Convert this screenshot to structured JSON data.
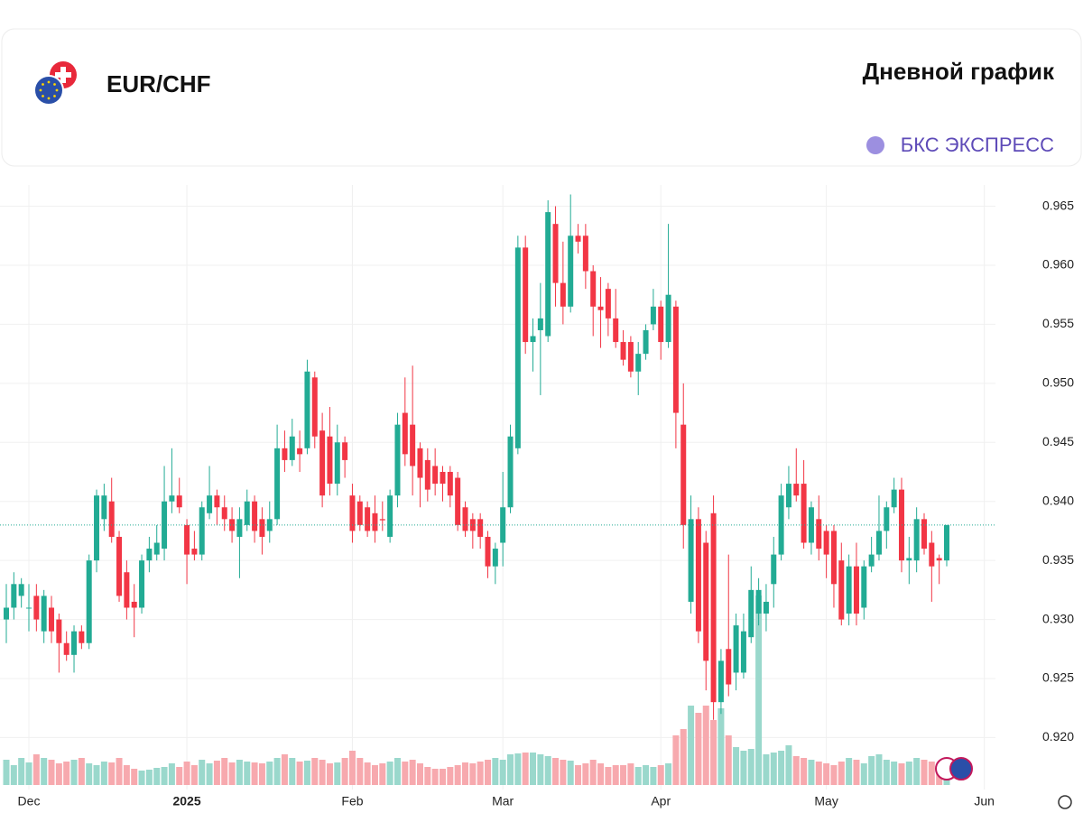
{
  "chart_data": {
    "type": "candlestick",
    "title": "EUR/CHF",
    "subtitle": "Дневной график",
    "brand": "БКС ЭКСПРЕСС",
    "up_color": "#22ab94",
    "down_color": "#f23645",
    "volume_up_color": "#9ad8cc",
    "volume_down_color": "#f7a9ae",
    "grid": true,
    "ylim": [
      0.9156,
      0.9668
    ],
    "yticks": [
      {
        "value": 0.92,
        "label": "0.920"
      },
      0.925,
      {
        "value": 0.93,
        "label": "0.930"
      },
      0.935,
      {
        "value": 0.94,
        "label": "0.940"
      },
      0.945,
      {
        "value": 0.95,
        "label": "0.950"
      },
      0.955,
      {
        "value": 0.96,
        "label": "0.960"
      },
      0.965
    ],
    "categories": [
      null,
      null,
      null,
      "Dec",
      null,
      null,
      null,
      null,
      null,
      null,
      null,
      null,
      null,
      null,
      null,
      null,
      null,
      null,
      null,
      null,
      null,
      null,
      null,
      null,
      "2025",
      null,
      null,
      null,
      null,
      null,
      null,
      null,
      null,
      null,
      null,
      null,
      null,
      null,
      null,
      null,
      null,
      null,
      null,
      null,
      null,
      null,
      "Feb",
      null,
      null,
      null,
      null,
      null,
      null,
      null,
      null,
      null,
      null,
      null,
      null,
      null,
      null,
      null,
      null,
      null,
      null,
      null,
      "Mar",
      null,
      null,
      null,
      null,
      null,
      null,
      null,
      null,
      null,
      null,
      null,
      null,
      null,
      null,
      null,
      null,
      null,
      null,
      null,
      null,
      "Apr",
      null,
      null,
      null,
      null,
      null,
      null,
      null,
      null,
      null,
      null,
      null,
      null,
      null,
      null,
      null,
      null,
      null,
      null,
      null,
      null,
      null,
      "May",
      null,
      null,
      null,
      null,
      null,
      null,
      null,
      null,
      null,
      null,
      null,
      null,
      null,
      null,
      null,
      null,
      null,
      null,
      null,
      null,
      "Jun"
    ],
    "candles": [
      [
        0.93,
        0.933,
        0.928,
        0.931
      ],
      [
        0.931,
        0.934,
        0.93,
        0.933
      ],
      [
        0.932,
        0.9335,
        0.931,
        0.933
      ],
      [
        0.931,
        0.933,
        0.929,
        0.931
      ],
      [
        0.932,
        0.933,
        0.929,
        0.93
      ],
      [
        0.929,
        0.9325,
        0.928,
        0.932
      ],
      [
        0.931,
        0.932,
        0.928,
        0.929
      ],
      [
        0.93,
        0.9305,
        0.9255,
        0.928
      ],
      [
        0.928,
        0.929,
        0.9265,
        0.927
      ],
      [
        0.927,
        0.9295,
        0.9255,
        0.929
      ],
      [
        0.929,
        0.9295,
        0.9275,
        0.928
      ],
      [
        0.928,
        0.9355,
        0.9275,
        0.935
      ],
      [
        0.935,
        0.941,
        0.934,
        0.9405
      ],
      [
        0.9385,
        0.9415,
        0.9375,
        0.9405
      ],
      [
        0.94,
        0.942,
        0.9365,
        0.937
      ],
      [
        0.937,
        0.9375,
        0.9315,
        0.932
      ],
      [
        0.934,
        0.935,
        0.93,
        0.931
      ],
      [
        0.9315,
        0.933,
        0.9285,
        0.931
      ],
      [
        0.931,
        0.9355,
        0.9305,
        0.935
      ],
      [
        0.935,
        0.937,
        0.934,
        0.936
      ],
      [
        0.9355,
        0.938,
        0.935,
        0.9365
      ],
      [
        0.936,
        0.943,
        0.935,
        0.94
      ],
      [
        0.94,
        0.9445,
        0.939,
        0.9405
      ],
      [
        0.9405,
        0.942,
        0.939,
        0.9395
      ],
      [
        0.938,
        0.9385,
        0.933,
        0.9355
      ],
      [
        0.936,
        0.9375,
        0.935,
        0.9355
      ],
      [
        0.9355,
        0.94,
        0.935,
        0.9395
      ],
      [
        0.939,
        0.943,
        0.9385,
        0.9405
      ],
      [
        0.9405,
        0.941,
        0.938,
        0.9395
      ],
      [
        0.9395,
        0.9405,
        0.9375,
        0.9385
      ],
      [
        0.9385,
        0.9395,
        0.9365,
        0.9375
      ],
      [
        0.937,
        0.9395,
        0.9335,
        0.9385
      ],
      [
        0.938,
        0.941,
        0.9375,
        0.94
      ],
      [
        0.94,
        0.9405,
        0.9365,
        0.9375
      ],
      [
        0.9385,
        0.9395,
        0.9355,
        0.937
      ],
      [
        0.9375,
        0.94,
        0.9365,
        0.9385
      ],
      [
        0.9385,
        0.9465,
        0.938,
        0.9445
      ],
      [
        0.9445,
        0.946,
        0.9425,
        0.9435
      ],
      [
        0.9435,
        0.947,
        0.943,
        0.9455
      ],
      [
        0.9445,
        0.946,
        0.9425,
        0.944
      ],
      [
        0.9445,
        0.952,
        0.944,
        0.951
      ],
      [
        0.9505,
        0.951,
        0.9445,
        0.9455
      ],
      [
        0.946,
        0.9475,
        0.9395,
        0.9405
      ],
      [
        0.9455,
        0.948,
        0.9405,
        0.9415
      ],
      [
        0.9415,
        0.9465,
        0.9405,
        0.945
      ],
      [
        0.945,
        0.9455,
        0.942,
        0.9435
      ],
      [
        0.9405,
        0.9415,
        0.9365,
        0.9375
      ],
      [
        0.94,
        0.9405,
        0.9375,
        0.938
      ],
      [
        0.9395,
        0.94,
        0.937,
        0.9375
      ],
      [
        0.939,
        0.9405,
        0.9365,
        0.9375
      ],
      [
        0.9385,
        0.94,
        0.9375,
        0.9384
      ],
      [
        0.937,
        0.941,
        0.9365,
        0.9405
      ],
      [
        0.9405,
        0.9475,
        0.9395,
        0.9465
      ],
      [
        0.9475,
        0.9505,
        0.943,
        0.944
      ],
      [
        0.9465,
        0.9515,
        0.9405,
        0.943
      ],
      [
        0.9445,
        0.945,
        0.9395,
        0.942
      ],
      [
        0.9435,
        0.9445,
        0.94,
        0.941
      ],
      [
        0.943,
        0.9445,
        0.9405,
        0.9415
      ],
      [
        0.9425,
        0.943,
        0.94,
        0.9415
      ],
      [
        0.9425,
        0.943,
        0.9395,
        0.9405
      ],
      [
        0.942,
        0.9425,
        0.9375,
        0.938
      ],
      [
        0.9395,
        0.94,
        0.937,
        0.9375
      ],
      [
        0.9385,
        0.939,
        0.936,
        0.9375
      ],
      [
        0.9385,
        0.939,
        0.936,
        0.937
      ],
      [
        0.937,
        0.9375,
        0.9335,
        0.9345
      ],
      [
        0.9345,
        0.9365,
        0.933,
        0.936
      ],
      [
        0.9365,
        0.9425,
        0.9345,
        0.9395
      ],
      [
        0.9395,
        0.9465,
        0.939,
        0.9455
      ],
      [
        0.9445,
        0.9625,
        0.944,
        0.9615
      ],
      [
        0.9615,
        0.9625,
        0.9525,
        0.9535
      ],
      [
        0.9535,
        0.9555,
        0.951,
        0.954
      ],
      [
        0.9545,
        0.9585,
        0.949,
        0.9555
      ],
      [
        0.954,
        0.9655,
        0.9535,
        0.9645
      ],
      [
        0.9635,
        0.965,
        0.9565,
        0.9585
      ],
      [
        0.9585,
        0.962,
        0.955,
        0.9565
      ],
      [
        0.9565,
        0.966,
        0.956,
        0.9625
      ],
      [
        0.9625,
        0.9635,
        0.961,
        0.962
      ],
      [
        0.9625,
        0.9635,
        0.958,
        0.9595
      ],
      [
        0.9595,
        0.96,
        0.954,
        0.9565
      ],
      [
        0.9565,
        0.959,
        0.953,
        0.9562
      ],
      [
        0.958,
        0.9585,
        0.954,
        0.9555
      ],
      [
        0.9555,
        0.958,
        0.953,
        0.9535
      ],
      [
        0.9535,
        0.9545,
        0.9515,
        0.952
      ],
      [
        0.9535,
        0.954,
        0.9505,
        0.951
      ],
      [
        0.951,
        0.9535,
        0.949,
        0.9525
      ],
      [
        0.9525,
        0.955,
        0.952,
        0.9545
      ],
      [
        0.955,
        0.958,
        0.9545,
        0.9565
      ],
      [
        0.9565,
        0.957,
        0.952,
        0.9535
      ],
      [
        0.9535,
        0.9635,
        0.953,
        0.9575
      ],
      [
        0.9565,
        0.957,
        0.9445,
        0.9475
      ],
      [
        0.9465,
        0.95,
        0.936,
        0.938
      ],
      [
        0.9315,
        0.9405,
        0.9305,
        0.9385
      ],
      [
        0.9385,
        0.9395,
        0.928,
        0.929
      ],
      [
        0.9365,
        0.9375,
        0.924,
        0.9265
      ],
      [
        0.939,
        0.9405,
        0.9215,
        0.923
      ],
      [
        0.923,
        0.9275,
        0.922,
        0.9265
      ],
      [
        0.9275,
        0.9355,
        0.9235,
        0.9245
      ],
      [
        0.9255,
        0.9305,
        0.924,
        0.9295
      ],
      [
        0.9255,
        0.9305,
        0.925,
        0.929
      ],
      [
        0.9285,
        0.9345,
        0.928,
        0.9325
      ],
      [
        0.9305,
        0.9335,
        0.9295,
        0.9325
      ],
      [
        0.9305,
        0.933,
        0.929,
        0.9315
      ],
      [
        0.933,
        0.937,
        0.931,
        0.9355
      ],
      [
        0.9355,
        0.9415,
        0.935,
        0.9405
      ],
      [
        0.9395,
        0.943,
        0.9385,
        0.9415
      ],
      [
        0.9415,
        0.9445,
        0.94,
        0.9405
      ],
      [
        0.9415,
        0.9435,
        0.936,
        0.9365
      ],
      [
        0.9365,
        0.94,
        0.9355,
        0.9395
      ],
      [
        0.9385,
        0.9405,
        0.935,
        0.936
      ],
      [
        0.9375,
        0.938,
        0.9335,
        0.9355
      ],
      [
        0.9375,
        0.938,
        0.931,
        0.933
      ],
      [
        0.935,
        0.9365,
        0.9295,
        0.93
      ],
      [
        0.9305,
        0.9355,
        0.9295,
        0.9345
      ],
      [
        0.9345,
        0.9365,
        0.9295,
        0.9305
      ],
      [
        0.931,
        0.935,
        0.93,
        0.9345
      ],
      [
        0.9345,
        0.937,
        0.934,
        0.9355
      ],
      [
        0.9355,
        0.9405,
        0.935,
        0.9375
      ],
      [
        0.9375,
        0.94,
        0.936,
        0.9395
      ],
      [
        0.9395,
        0.942,
        0.939,
        0.941
      ],
      [
        0.941,
        0.942,
        0.934,
        0.935
      ],
      [
        0.935,
        0.937,
        0.933,
        0.9352
      ],
      [
        0.935,
        0.9395,
        0.934,
        0.9385
      ],
      [
        0.9385,
        0.939,
        0.9355,
        0.936
      ],
      [
        0.9365,
        0.9375,
        0.9315,
        0.9345
      ],
      [
        0.9352,
        0.9355,
        0.933,
        0.935
      ],
      [
        0.935,
        0.938,
        0.9345,
        0.938
      ],
      null,
      null,
      null,
      null,
      null
    ],
    "volume": [
      28,
      22,
      30,
      25,
      34,
      30,
      28,
      24,
      26,
      28,
      30,
      24,
      22,
      26,
      25,
      30,
      22,
      18,
      16,
      17,
      19,
      20,
      24,
      20,
      26,
      22,
      28,
      24,
      27,
      30,
      25,
      28,
      26,
      25,
      24,
      26,
      30,
      34,
      30,
      26,
      27,
      30,
      28,
      24,
      25,
      30,
      38,
      30,
      25,
      22,
      24,
      26,
      30,
      26,
      28,
      24,
      20,
      18,
      18,
      20,
      22,
      25,
      24,
      26,
      28,
      30,
      28,
      34,
      35,
      36,
      36,
      34,
      32,
      30,
      28,
      27,
      22,
      24,
      28,
      24,
      20,
      22,
      22,
      24,
      20,
      22,
      20,
      22,
      24,
      55,
      62,
      88,
      80,
      88,
      72,
      85,
      55,
      42,
      38,
      40,
      210,
      34,
      36,
      38,
      44,
      32,
      30,
      28,
      26,
      24,
      22,
      26,
      30,
      28,
      24,
      32,
      34,
      28,
      26,
      24,
      26,
      30,
      28,
      26,
      14,
      12,
      null,
      null,
      null,
      null,
      null
    ]
  }
}
